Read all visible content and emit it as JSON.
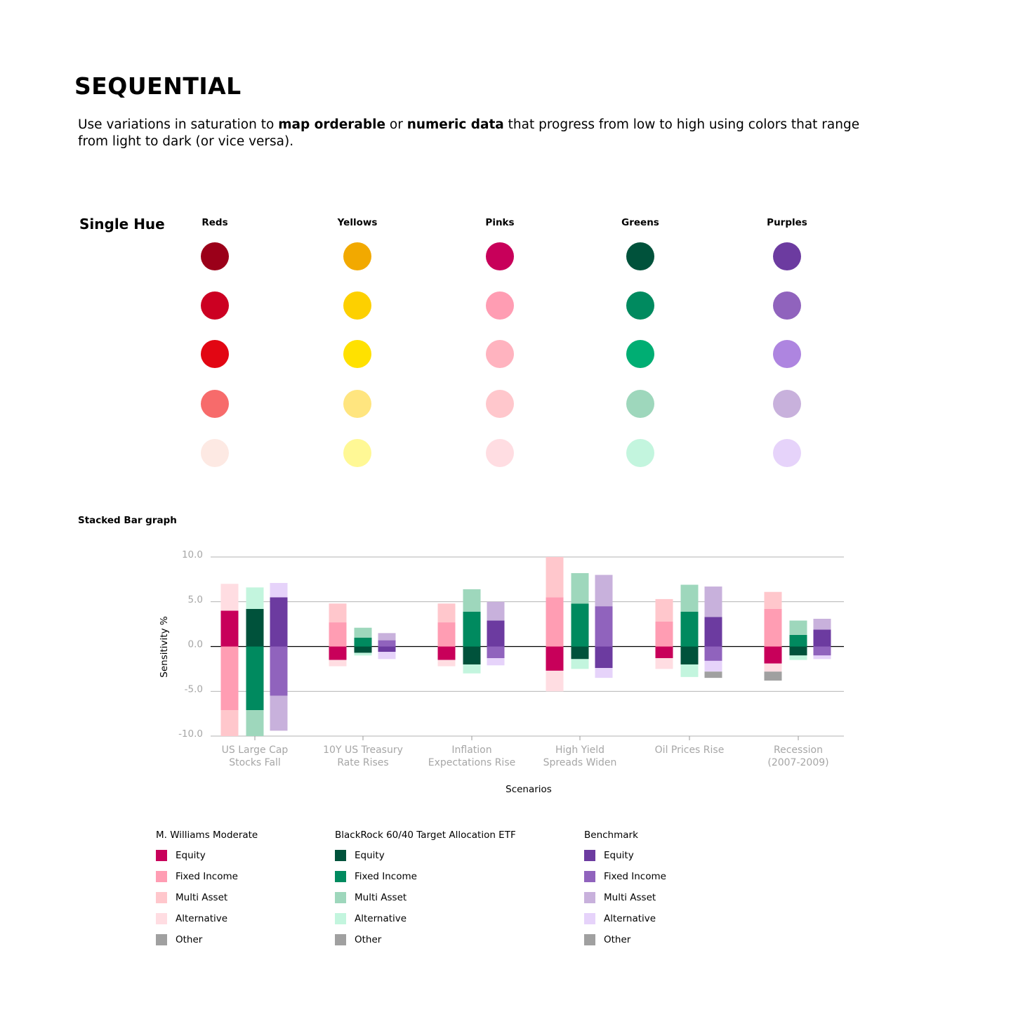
{
  "header": {
    "title": "SEQUENTIAL",
    "intro": {
      "p1": "Use variations in saturation to ",
      "b1": "map orderable",
      "p2": " or ",
      "b2": "numeric data",
      "p3": " that progress from low to high using colors that range from light to dark (or vice versa)."
    }
  },
  "single_hue": {
    "label": "Single Hue",
    "palettes": [
      {
        "name": "Reds",
        "colors": [
          "#9b0019",
          "#cc0022",
          "#e20613",
          "#f76b6b",
          "#fde9e3"
        ]
      },
      {
        "name": "Yellows",
        "colors": [
          "#f2a900",
          "#fdd000",
          "#ffe100",
          "#ffe57f",
          "#fff895"
        ]
      },
      {
        "name": "Pinks",
        "colors": [
          "#c8005a",
          "#ff9db3",
          "#ffb3bf",
          "#ffc7cc",
          "#ffdde2"
        ]
      },
      {
        "name": "Greens",
        "colors": [
          "#00523b",
          "#008a5f",
          "#00ae73",
          "#9ed7bc",
          "#c3f5de"
        ]
      },
      {
        "name": "Purples",
        "colors": [
          "#6c3ba0",
          "#9063bd",
          "#ae85e0",
          "#c8b1dc",
          "#e6d3fa"
        ]
      }
    ]
  },
  "stacked_bar": {
    "label": "Stacked Bar graph",
    "legend_groups": [
      {
        "title": "M. Williams Moderate",
        "items": [
          {
            "label": "Equity",
            "color": "#c8005a"
          },
          {
            "label": "Fixed Income",
            "color": "#ff9db3"
          },
          {
            "label": "Multi Asset",
            "color": "#ffc7cc"
          },
          {
            "label": "Alternative",
            "color": "#ffdde2"
          },
          {
            "label": "Other",
            "color": "#a0a0a0"
          }
        ]
      },
      {
        "title": "BlackRock 60/40 Target Allocation ETF",
        "items": [
          {
            "label": "Equity",
            "color": "#00523b"
          },
          {
            "label": "Fixed Income",
            "color": "#008a5f"
          },
          {
            "label": "Multi Asset",
            "color": "#9ed7bc"
          },
          {
            "label": "Alternative",
            "color": "#c3f5de"
          },
          {
            "label": "Other",
            "color": "#a0a0a0"
          }
        ]
      },
      {
        "title": "Benchmark",
        "items": [
          {
            "label": "Equity",
            "color": "#6c3ba0"
          },
          {
            "label": "Fixed Income",
            "color": "#9063bd"
          },
          {
            "label": "Multi Asset",
            "color": "#c8b1dc"
          },
          {
            "label": "Alternative",
            "color": "#e6d3fa"
          },
          {
            "label": "Other",
            "color": "#a0a0a0"
          }
        ]
      }
    ]
  },
  "chart_data": {
    "type": "bar",
    "stacked": true,
    "xlabel": "Scenarios",
    "ylabel": "Sensitivity %",
    "ylim": [
      -10,
      10
    ],
    "yticks": [
      10,
      5,
      0,
      -5,
      -10
    ],
    "ytick_labels": [
      "10.0",
      "5.0",
      "0.0",
      "-5.0",
      "-10.0"
    ],
    "grid": true,
    "categories": [
      [
        "US Large Cap",
        "Stocks Fall"
      ],
      [
        "10Y US Treasury",
        "Rate Rises"
      ],
      [
        "Inflation",
        "Expectations Rise"
      ],
      [
        "High Yield",
        "Spreads Widen"
      ],
      [
        "Oil Prices Rise"
      ],
      [
        "Recession",
        "(2007-2009)"
      ]
    ],
    "series": [
      {
        "name": "M. Williams Moderate",
        "values": [
          {
            "Equity": 4.0,
            "Fixed Income": -7.1,
            "Multi Asset": -2.9,
            "Alternative": 3.0
          },
          {
            "Equity": -1.5,
            "Fixed Income": 2.7,
            "Multi Asset": 2.1,
            "Alternative": -0.7
          },
          {
            "Equity": -1.5,
            "Fixed Income": 2.7,
            "Multi Asset": 2.1,
            "Alternative": -0.7
          },
          {
            "Equity": -2.7,
            "Fixed Income": 5.5,
            "Multi Asset": 4.5,
            "Alternative": -2.3
          },
          {
            "Equity": -1.3,
            "Fixed Income": 2.8,
            "Multi Asset": 2.5,
            "Alternative": -1.2
          },
          {
            "Equity": -1.9,
            "Fixed Income": 4.2,
            "Multi Asset": 1.9,
            "Alternative": -0.9,
            "Other": -1.0
          }
        ]
      },
      {
        "name": "BlackRock 60/40 Target Allocation ETF",
        "values": [
          {
            "Equity": 4.2,
            "Fixed Income": -7.1,
            "Multi Asset": -2.9,
            "Alternative": 2.4
          },
          {
            "Equity": -0.7,
            "Fixed Income": 1.0,
            "Multi Asset": 1.1,
            "Alternative": -0.3
          },
          {
            "Equity": -2.0,
            "Fixed Income": 3.9,
            "Multi Asset": 2.5,
            "Alternative": -1.0
          },
          {
            "Equity": -1.4,
            "Fixed Income": 4.8,
            "Multi Asset": 3.4,
            "Alternative": -1.1
          },
          {
            "Equity": -2.0,
            "Fixed Income": 3.9,
            "Multi Asset": 3.0,
            "Alternative": -1.4
          },
          {
            "Equity": -1.0,
            "Fixed Income": 1.3,
            "Multi Asset": 1.6,
            "Alternative": -0.5
          }
        ]
      },
      {
        "name": "Benchmark",
        "values": [
          {
            "Equity": 5.5,
            "Fixed Income": -5.5,
            "Multi Asset": -3.9,
            "Alternative": 1.6
          },
          {
            "Equity": -0.6,
            "Fixed Income": 0.7,
            "Multi Asset": 0.8,
            "Alternative": -0.8
          },
          {
            "Equity": 2.9,
            "Fixed Income": -1.3,
            "Multi Asset": 2.1,
            "Alternative": -0.8
          },
          {
            "Equity": -2.4,
            "Fixed Income": 4.5,
            "Multi Asset": 3.5,
            "Alternative": -1.1
          },
          {
            "Equity": 3.3,
            "Fixed Income": -1.6,
            "Multi Asset": 3.4,
            "Alternative": -1.2,
            "Other": -0.7
          },
          {
            "Equity": 1.9,
            "Fixed Income": -1.0,
            "Multi Asset": 1.2,
            "Alternative": -0.4
          }
        ]
      }
    ]
  }
}
